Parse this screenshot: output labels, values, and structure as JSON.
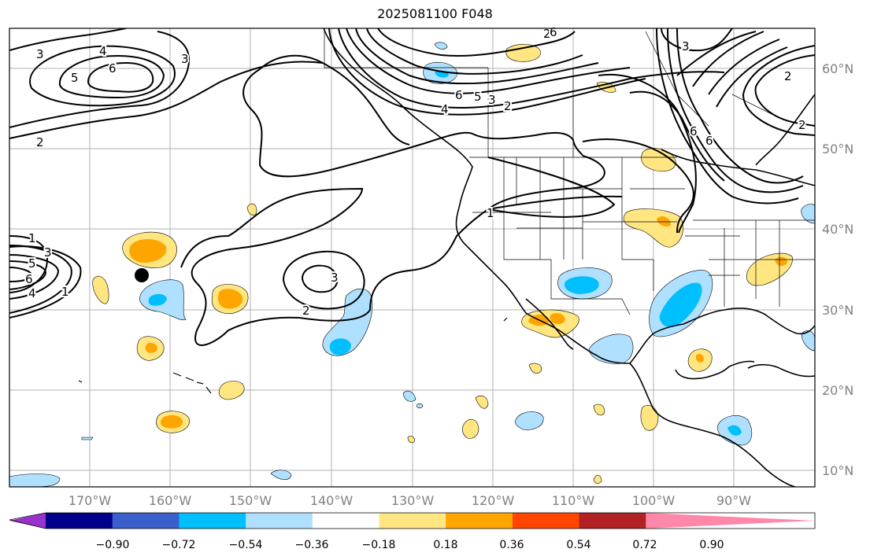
{
  "title": "2025081100 F048",
  "map": {
    "lat_labels": [
      "60°N",
      "50°N",
      "40°N",
      "30°N",
      "20°N",
      "10°N"
    ],
    "lon_labels": [
      "170°W",
      "160°W",
      "150°W",
      "140°W",
      "130°W",
      "120°W",
      "110°W",
      "100°W",
      "90°W"
    ],
    "contour_labels": [
      "3",
      "4",
      "5",
      "6",
      "3",
      "2",
      "1",
      "3",
      "5",
      "6",
      "4",
      "1",
      "2",
      "3",
      "2",
      "1",
      "6",
      "5",
      "3",
      "2",
      "4",
      "6",
      "3",
      "2",
      "6",
      "6",
      "2"
    ],
    "marker": "black-dot"
  },
  "colorbar": {
    "ticks": [
      "−0.90",
      "−0.72",
      "−0.54",
      "−0.36",
      "−0.18",
      "0.18",
      "0.36",
      "0.54",
      "0.72",
      "0.90"
    ],
    "colors": [
      "#9932cc",
      "#00008b",
      "#3a5fcd",
      "#00bfff",
      "#b0e0ff",
      "#ffffff",
      "#ffe680",
      "#ffa500",
      "#ff4500",
      "#b22222",
      "#ff88aa"
    ]
  }
}
